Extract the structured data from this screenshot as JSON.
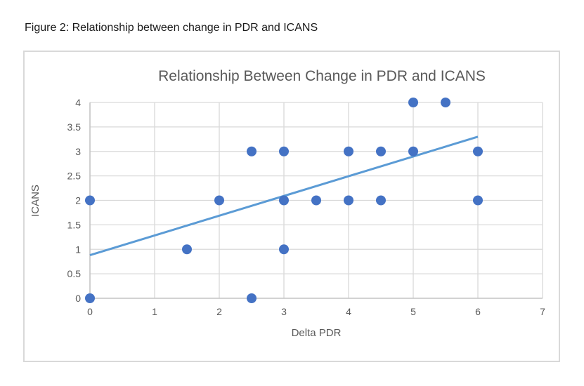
{
  "page": {
    "caption": "Figure 2: Relationship between change in PDR and ICANS"
  },
  "chart_data": {
    "type": "scatter",
    "title": "Relationship Between Change in PDR and ICANS",
    "xlabel": "Delta PDR",
    "ylabel": "ICANS",
    "xlim": [
      0,
      7
    ],
    "ylim": [
      0,
      4
    ],
    "x_ticks": [
      0,
      1,
      2,
      3,
      4,
      5,
      6,
      7
    ],
    "y_ticks": [
      0,
      0.5,
      1,
      1.5,
      2,
      2.5,
      3,
      3.5,
      4
    ],
    "grid": true,
    "legend": false,
    "points": [
      [
        0,
        0
      ],
      [
        2.5,
        0
      ],
      [
        1.5,
        1
      ],
      [
        3,
        1
      ],
      [
        0,
        2
      ],
      [
        2,
        2
      ],
      [
        3,
        2
      ],
      [
        3.5,
        2
      ],
      [
        4,
        2
      ],
      [
        4.5,
        2
      ],
      [
        6,
        2
      ],
      [
        2.5,
        3
      ],
      [
        3,
        3
      ],
      [
        4,
        3
      ],
      [
        4.5,
        3
      ],
      [
        5,
        3
      ],
      [
        6,
        3
      ],
      [
        5,
        4
      ],
      [
        5.5,
        4
      ]
    ],
    "trendline": {
      "x_start": 0,
      "y_start": 0.88,
      "x_end": 6,
      "y_end": 3.3
    },
    "marker_radius": 7,
    "colors": {
      "point": "#4472C4",
      "trendline": "#5B9BD5",
      "gridline": "#D9D9D9",
      "axis_line": "#C6C6C6",
      "axis_text": "#595959",
      "title_text": "#595959"
    }
  }
}
